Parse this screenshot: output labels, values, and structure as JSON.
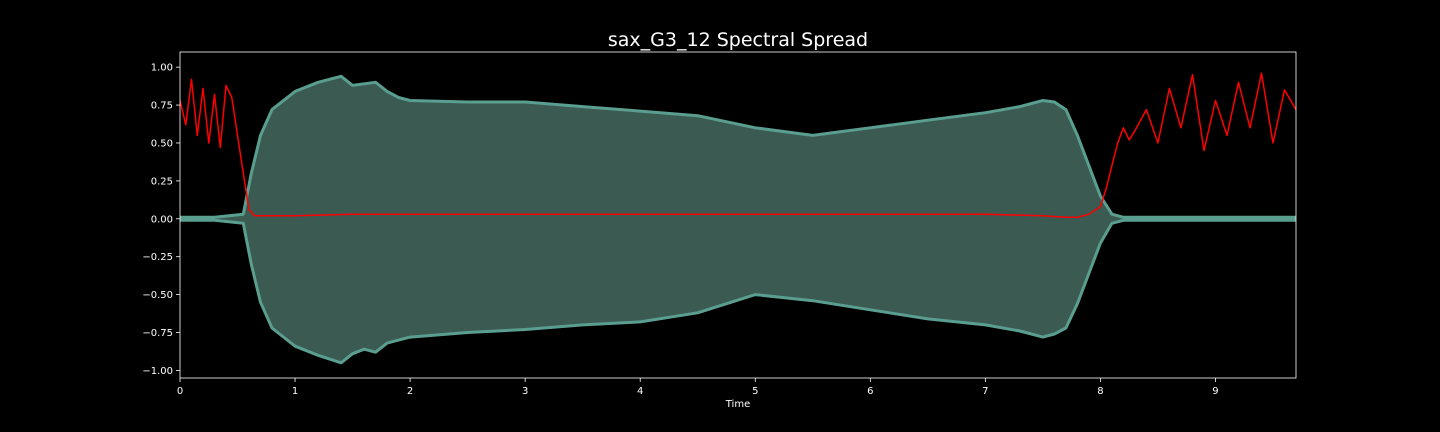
{
  "chart_data": {
    "type": "line",
    "title": "sax_G3_12 Spectral Spread",
    "xlabel": "Time",
    "ylabel": "",
    "xlim": [
      0,
      9.7
    ],
    "ylim": [
      -1.05,
      1.1
    ],
    "x_ticks": [
      0,
      1,
      2,
      3,
      4,
      5,
      6,
      7,
      8,
      9
    ],
    "x_tick_labels": [
      "0",
      "1",
      "2",
      "3",
      "4",
      "5",
      "6",
      "7",
      "8",
      "9"
    ],
    "y_ticks": [
      1.0,
      0.75,
      0.5,
      0.25,
      0.0,
      -0.25,
      -0.5,
      -0.75,
      -1.0
    ],
    "y_tick_labels": [
      "1.00",
      "0.75",
      "0.50",
      "0.25",
      "0.00",
      "−0.25",
      "−0.50",
      "−0.75",
      "−1.00"
    ],
    "grid": false,
    "background": "#000000",
    "series": [
      {
        "kind": "waveform-envelope",
        "color": "#5a9e8f",
        "fill_color": "#3b5a52",
        "x": [
          0,
          0.3,
          0.55,
          0.62,
          0.7,
          0.8,
          1.0,
          1.2,
          1.4,
          1.5,
          1.6,
          1.7,
          1.8,
          1.9,
          2.0,
          2.5,
          3.0,
          3.5,
          4.0,
          4.5,
          5.0,
          5.5,
          6.0,
          6.5,
          7.0,
          7.3,
          7.5,
          7.6,
          7.7,
          7.8,
          7.9,
          8.0,
          8.1,
          8.2,
          8.3,
          9.0,
          9.7
        ],
        "upper": [
          0.01,
          0.01,
          0.03,
          0.3,
          0.55,
          0.72,
          0.84,
          0.9,
          0.94,
          0.88,
          0.89,
          0.9,
          0.84,
          0.8,
          0.78,
          0.77,
          0.77,
          0.74,
          0.71,
          0.68,
          0.6,
          0.55,
          0.6,
          0.65,
          0.7,
          0.74,
          0.78,
          0.77,
          0.72,
          0.55,
          0.35,
          0.15,
          0.03,
          0.01,
          0.01,
          0.01,
          0.01
        ],
        "lower": [
          -0.01,
          -0.01,
          -0.03,
          -0.3,
          -0.55,
          -0.72,
          -0.84,
          -0.9,
          -0.95,
          -0.89,
          -0.86,
          -0.88,
          -0.82,
          -0.8,
          -0.78,
          -0.75,
          -0.73,
          -0.7,
          -0.68,
          -0.62,
          -0.5,
          -0.54,
          -0.6,
          -0.66,
          -0.7,
          -0.74,
          -0.78,
          -0.76,
          -0.72,
          -0.56,
          -0.36,
          -0.16,
          -0.03,
          -0.01,
          -0.01,
          -0.01,
          -0.01
        ]
      },
      {
        "kind": "line",
        "color": "#ff0000",
        "x": [
          0,
          0.05,
          0.1,
          0.15,
          0.2,
          0.25,
          0.3,
          0.35,
          0.4,
          0.45,
          0.5,
          0.55,
          0.6,
          0.65,
          0.7,
          1.0,
          1.5,
          2.0,
          3.0,
          4.0,
          5.0,
          6.0,
          7.0,
          7.5,
          7.7,
          7.8,
          7.9,
          8.0,
          8.05,
          8.1,
          8.15,
          8.2,
          8.25,
          8.3,
          8.4,
          8.5,
          8.6,
          8.7,
          8.8,
          8.9,
          9.0,
          9.1,
          9.2,
          9.3,
          9.4,
          9.5,
          9.6,
          9.7
        ],
        "values": [
          0.78,
          0.62,
          0.92,
          0.55,
          0.86,
          0.5,
          0.82,
          0.47,
          0.88,
          0.8,
          0.55,
          0.3,
          0.06,
          0.02,
          0.02,
          0.02,
          0.03,
          0.03,
          0.03,
          0.03,
          0.03,
          0.03,
          0.03,
          0.02,
          0.01,
          0.01,
          0.03,
          0.08,
          0.2,
          0.35,
          0.5,
          0.6,
          0.52,
          0.58,
          0.72,
          0.5,
          0.86,
          0.6,
          0.95,
          0.45,
          0.78,
          0.55,
          0.9,
          0.6,
          0.96,
          0.5,
          0.85,
          0.72
        ]
      }
    ]
  }
}
